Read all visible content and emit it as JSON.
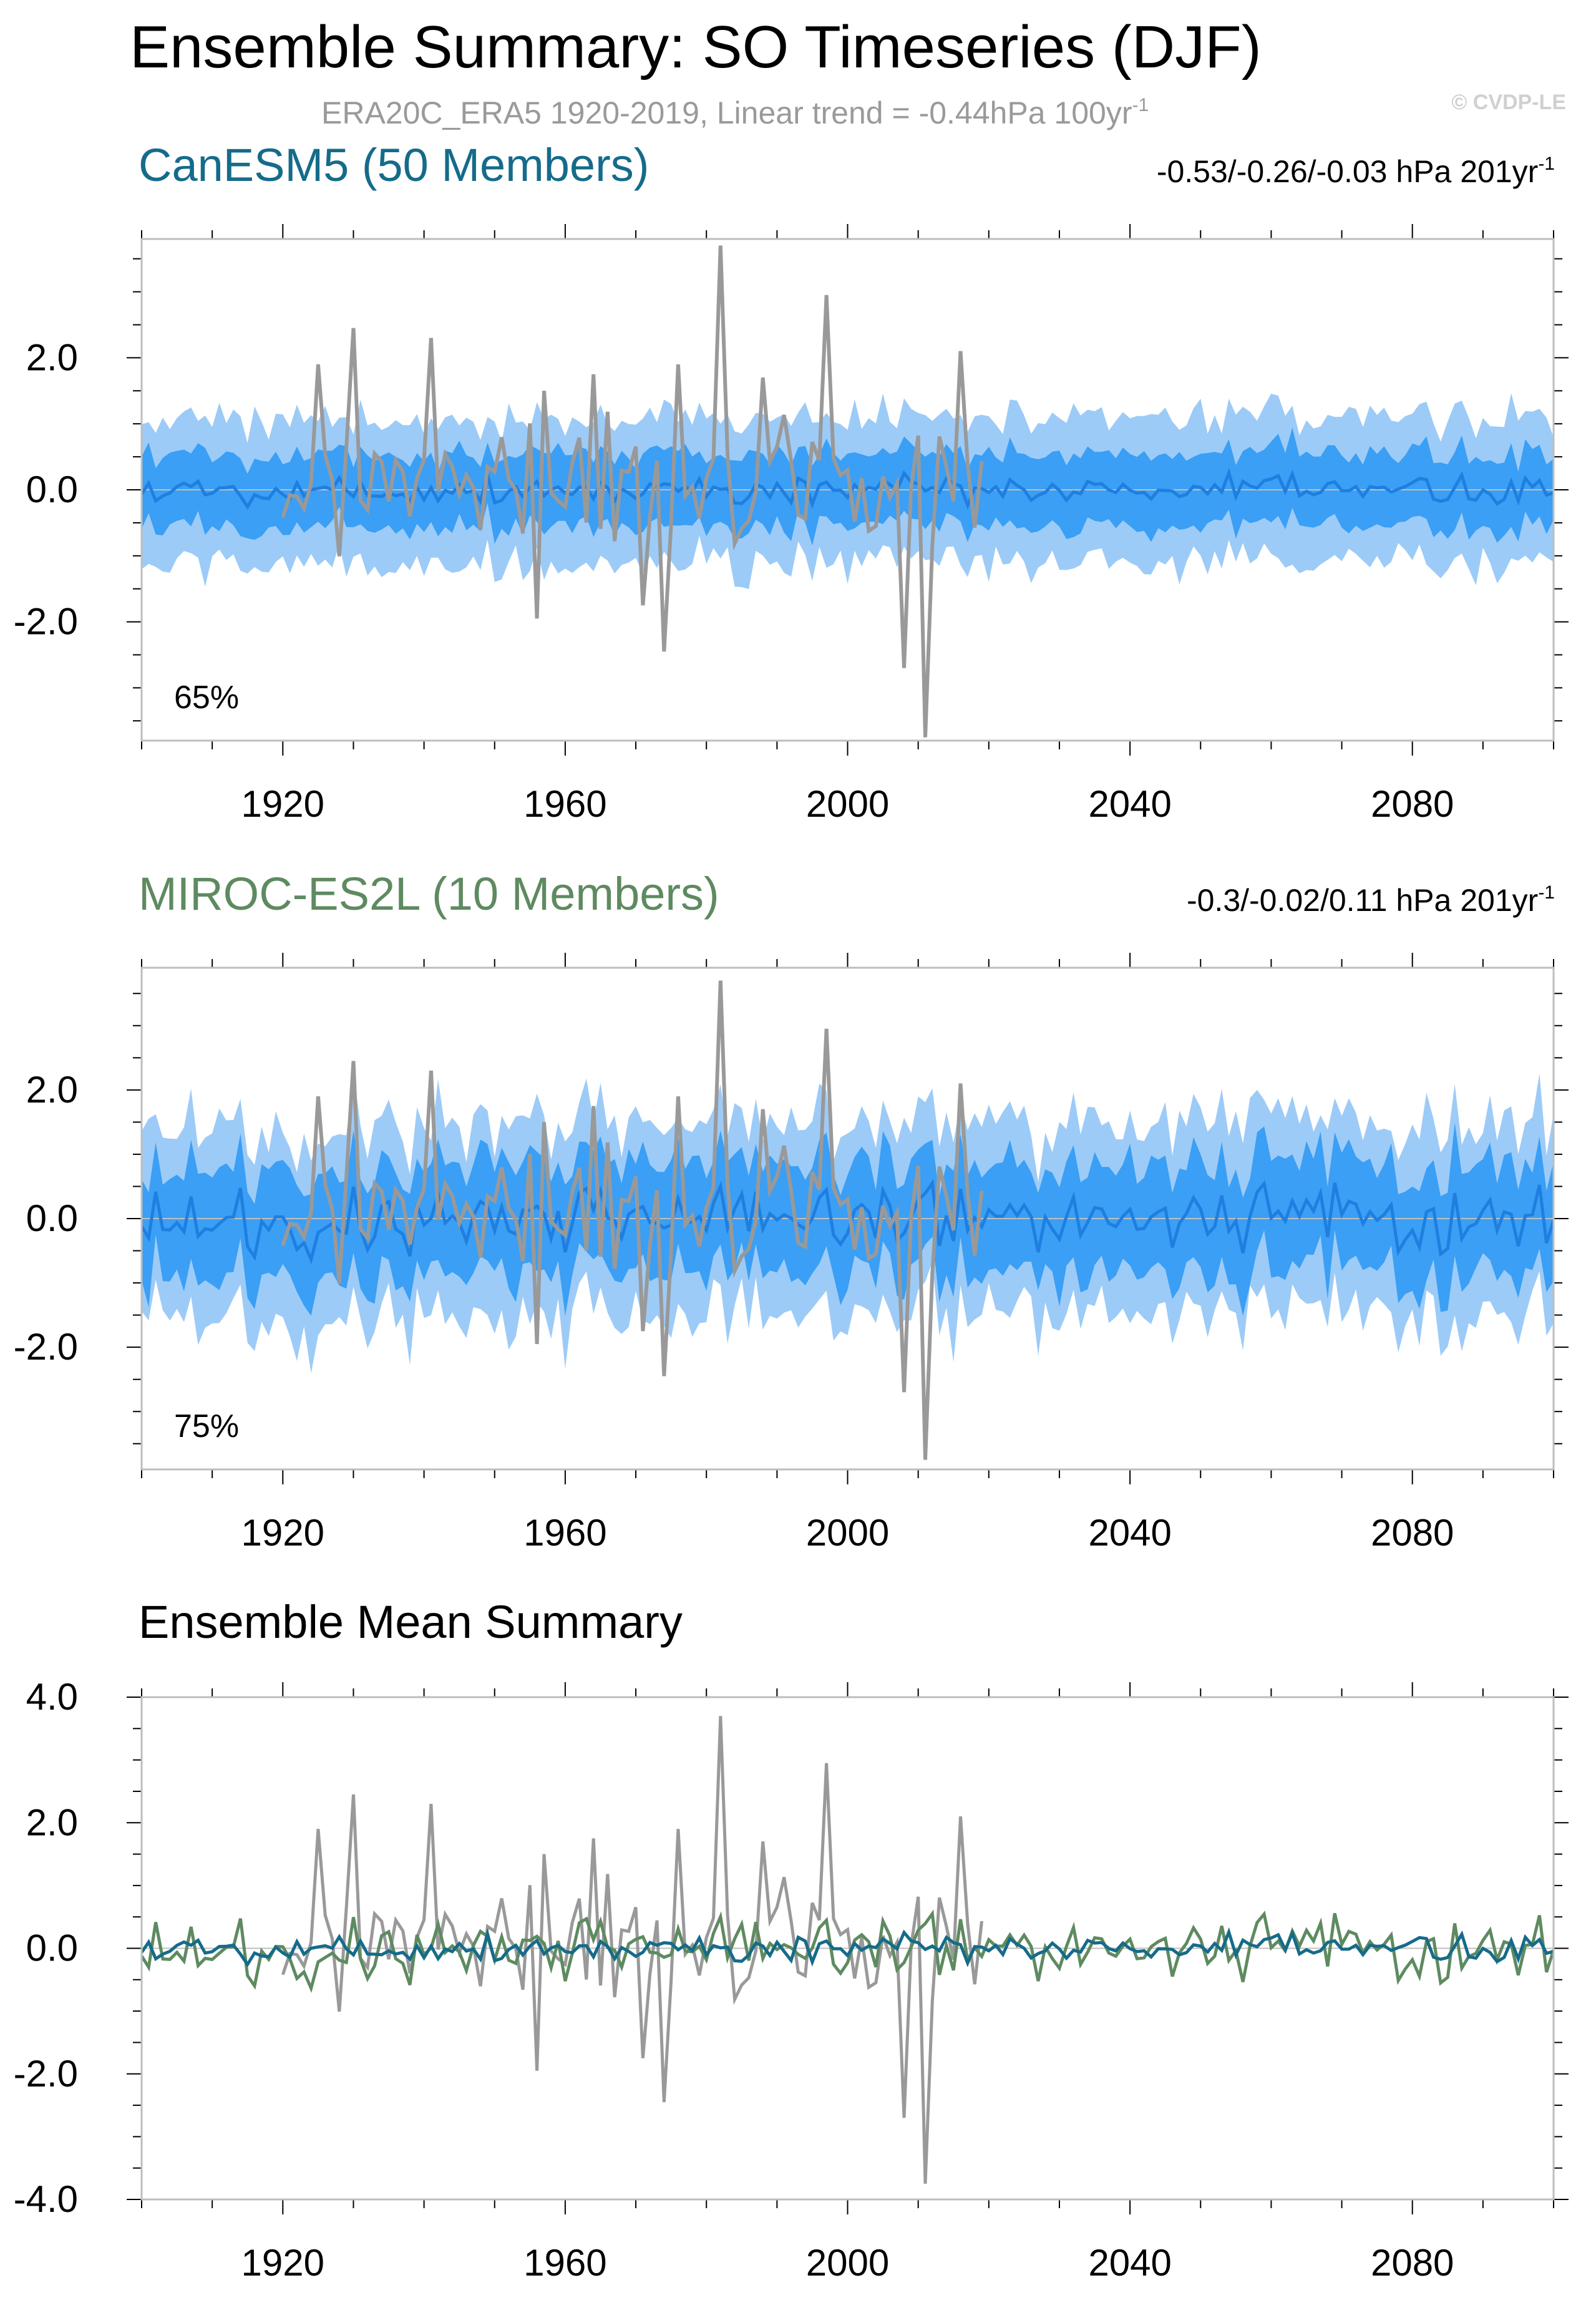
{
  "title": "Ensemble Summary: SO Timeseries (DJF)",
  "subtitle": "ERA20C_ERA5 1920-2019, Linear trend = -0.44hPa 100yr",
  "subtitle_sup": "-1",
  "watermark": "© CVDP-LE",
  "colors": {
    "inner_band": "#3a9ff5",
    "outer_band": "#9dcbf7",
    "ens_mean_line": "#1f7fe0",
    "obs": "#999999",
    "canesm5": "#156b8a",
    "miroc": "#5e8a60",
    "zero_line": "#bfbfbf"
  },
  "chart_data": [
    {
      "type": "area",
      "title": "CanESM5 (50 Members)",
      "title_color": "#156b8a",
      "trend_text": "-0.53/-0.26/-0.03 hPa 201yr",
      "trend_sup": "-1",
      "percent_label": "65%",
      "xlim": [
        1900,
        2100
      ],
      "ylim": [
        -3.8,
        3.8
      ],
      "xticks": [
        1920,
        1960,
        2000,
        2040,
        2080
      ],
      "yticks": [
        2.0,
        0.0,
        -2.0
      ],
      "ytick_labels": [
        "2.0",
        "0.0",
        "-2.0"
      ],
      "grid": false,
      "series": [
        {
          "role": "outer_band_10_90",
          "x_start": 1900,
          "x_end": 2100,
          "spread": 1.1
        },
        {
          "role": "inner_band_25_75",
          "x_start": 1900,
          "x_end": 2100,
          "spread": 0.55
        },
        {
          "role": "ensemble_mean",
          "x_start": 1900,
          "x_end": 2100,
          "amplitude": 0.2
        },
        {
          "role": "observations",
          "x_start": 1920,
          "x_end": 2019,
          "peaks": [
            [
              1925,
              1.9
            ],
            [
              1930,
              2.45
            ],
            [
              1941,
              2.3
            ],
            [
              1957,
              1.5
            ],
            [
              1964,
              1.75
            ],
            [
              1976,
              1.9
            ],
            [
              1982,
              3.7
            ],
            [
              1988,
              1.7
            ],
            [
              1997,
              2.95
            ],
            [
              2011,
              -3.75
            ],
            [
              2016,
              2.1
            ],
            [
              1974,
              -2.45
            ],
            [
              2008,
              -2.7
            ],
            [
              1956,
              -1.95
            ],
            [
              1971,
              -1.75
            ]
          ]
        }
      ]
    },
    {
      "type": "area",
      "title": "MIROC-ES2L (10 Members)",
      "title_color": "#5e8a60",
      "trend_text": "-0.3/-0.02/0.11 hPa 201yr",
      "trend_sup": "-1",
      "percent_label": "75%",
      "xlim": [
        1900,
        2100
      ],
      "ylim": [
        -3.9,
        3.9
      ],
      "xticks": [
        1920,
        1960,
        2000,
        2040,
        2080
      ],
      "yticks": [
        2.0,
        0.0,
        -2.0
      ],
      "ytick_labels": [
        "2.0",
        "0.0",
        "-2.0"
      ],
      "grid": false,
      "series": [
        {
          "role": "outer_band_10_90",
          "x_start": 1900,
          "x_end": 2100,
          "spread": 1.5
        },
        {
          "role": "inner_band_25_75",
          "x_start": 1900,
          "x_end": 2100,
          "spread": 0.85
        },
        {
          "role": "ensemble_mean",
          "x_start": 1900,
          "x_end": 2100,
          "amplitude": 0.45
        },
        {
          "role": "observations",
          "x_start": 1920,
          "x_end": 2019,
          "peaks": [
            [
              1925,
              1.9
            ],
            [
              1930,
              2.45
            ],
            [
              1941,
              2.3
            ],
            [
              1957,
              1.5
            ],
            [
              1964,
              1.75
            ],
            [
              1976,
              1.9
            ],
            [
              1982,
              3.7
            ],
            [
              1988,
              1.7
            ],
            [
              1997,
              2.95
            ],
            [
              2011,
              -3.75
            ],
            [
              2016,
              2.1
            ],
            [
              1974,
              -2.45
            ],
            [
              2008,
              -2.7
            ],
            [
              1956,
              -1.95
            ],
            [
              1971,
              -1.75
            ]
          ]
        }
      ]
    },
    {
      "type": "line",
      "title": "Ensemble Mean Summary",
      "title_color": "#000000",
      "xlim": [
        1900,
        2100
      ],
      "ylim": [
        -4.0,
        4.0
      ],
      "xticks": [
        1920,
        1960,
        2000,
        2040,
        2080
      ],
      "yticks": [
        4.0,
        2.0,
        0.0,
        -2.0,
        -4.0
      ],
      "ytick_labels": [
        "4.0",
        "2.0",
        "0.0",
        "-2.0",
        "-4.0"
      ],
      "grid": false,
      "series": [
        {
          "role": "observations",
          "color_key": "obs",
          "x_start": 1920,
          "x_end": 2019
        },
        {
          "role": "canesm5_mean",
          "color_key": "canesm5",
          "x_start": 1900,
          "x_end": 2100,
          "amplitude": 0.2
        },
        {
          "role": "miroc_mean",
          "color_key": "miroc",
          "x_start": 1900,
          "x_end": 2100,
          "amplitude": 0.45
        }
      ]
    }
  ]
}
